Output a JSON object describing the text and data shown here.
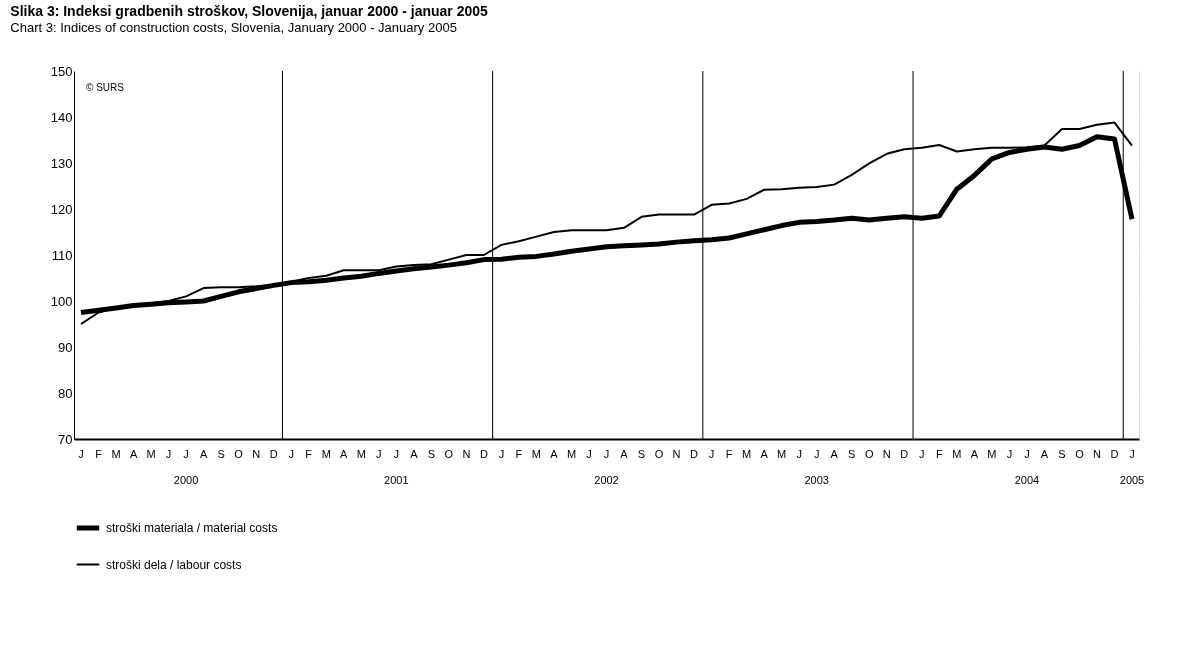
{
  "chart_data": {
    "type": "line",
    "title": "Slika 3:   Indeksi gradbenih stroškov, Slovenija, januar 2000 - januar 2005",
    "subtitle": "Chart 3:   Indices of construction costs, Slovenia, January 2000 - January 2005",
    "categories": [
      "J",
      "F",
      "M",
      "A",
      "M",
      "J",
      "J\n2000",
      "A",
      "S",
      "O",
      "N",
      "D",
      "J",
      "F",
      "M",
      "A",
      "M",
      "J",
      "J\n2001",
      "A",
      "S",
      "O",
      "N",
      "D",
      "J",
      "F",
      "M",
      "A",
      "M",
      "J",
      "J\n2002",
      "A",
      "S",
      "O",
      "N",
      "D",
      "J",
      "F",
      "M",
      "A",
      "M",
      "J",
      "J\n2003",
      "A",
      "S",
      "O",
      "N",
      "D",
      "J",
      "F",
      "M",
      "A",
      "M",
      "J",
      "J\n2004",
      "A",
      "S",
      "O",
      "N",
      "D",
      "J\n2005"
    ],
    "series": [
      {
        "name": "stroški materiala / material costs",
        "color": "#000000",
        "values": [
          97.5,
          98,
          98.5,
          99,
          99.3,
          99.6,
          99.8,
          100,
          101,
          102,
          102.7,
          103.4,
          104,
          104.2,
          104.5,
          105,
          105.4,
          106,
          106.5,
          107,
          107.4,
          107.8,
          108.3,
          109,
          109.1,
          109.5,
          109.7,
          110.2,
          110.8,
          111.3,
          111.8,
          112,
          112.2,
          112.4,
          112.8,
          113.1,
          113.3,
          113.7,
          114.6,
          115.5,
          116.4,
          117.1,
          117.3,
          117.6,
          118,
          117.6,
          118,
          118.3,
          118,
          118.5,
          124.3,
          127.3,
          130.9,
          132.3,
          133,
          133.5,
          133,
          133.8,
          135.7,
          135.2,
          117.8
        ]
      },
      {
        "name": "stroški dela / labour costs",
        "color": "#000000",
        "values": [
          95,
          97.5,
          98.5,
          99,
          99.5,
          100,
          101,
          102.8,
          103,
          103,
          103.2,
          103.5,
          104.2,
          105,
          105.5,
          106.7,
          106.7,
          106.7,
          107.5,
          107.8,
          108,
          109,
          110,
          110,
          112.2,
          113,
          114,
          115,
          115.4,
          115.4,
          115.4,
          115.9,
          118.3,
          118.8,
          118.8,
          118.8,
          120.9,
          121.2,
          122.2,
          124.2,
          124.3,
          124.6,
          124.8,
          125.3,
          127.4,
          129.9,
          132,
          133,
          133.3,
          133.9,
          132.5,
          133,
          133.3,
          133.3,
          133.4,
          133.8,
          137.4,
          137.4,
          138.3,
          138.8,
          133.8
        ]
      }
    ],
    "ylim": [
      70,
      150
    ],
    "yticks": [
      70,
      80,
      90,
      100,
      110,
      120,
      130,
      140,
      150
    ],
    "grid": true,
    "legend": "bottom left",
    "line_style": "solid",
    "annotations": [
      "© SURS"
    ]
  }
}
